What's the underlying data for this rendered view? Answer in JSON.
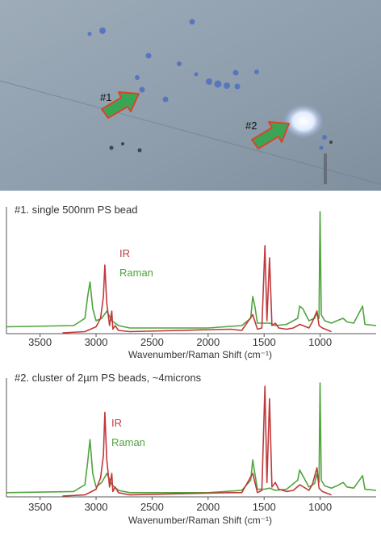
{
  "micrograph": {
    "labels": [
      "#1",
      "#2"
    ],
    "colors": {
      "background": "#8a9aa9",
      "particle": "#5b7dc9",
      "arrow": "#3aa655",
      "arrow_outline": "#d9452b"
    }
  },
  "chart_data": [
    {
      "type": "line",
      "title": "#1. single 500nm PS bead",
      "xlabel": "Wavenumber/Raman Shift (cm⁻¹)",
      "xlim": [
        3800,
        500
      ],
      "x_reversed": true,
      "x_ticks": [
        3500,
        3000,
        2500,
        2000,
        1500,
        1000
      ],
      "y_ticks_shown": false,
      "legend_position": "top-center",
      "series": [
        {
          "name": "IR",
          "color": "#c0393b",
          "x": [
            3300,
            3100,
            3000,
            2960,
            2935,
            2922,
            2905,
            2880,
            2860,
            2850,
            2830,
            2800,
            2700,
            1800,
            1700,
            1602,
            1560,
            1520,
            1493,
            1475,
            1452,
            1430,
            1400,
            1370,
            1300,
            1240,
            1180,
            1100,
            1070,
            1028,
            1010,
            980,
            900
          ],
          "y": [
            0.0,
            0.01,
            0.05,
            0.12,
            0.3,
            0.56,
            0.25,
            0.06,
            0.18,
            0.03,
            0.06,
            0.02,
            0.01,
            0.03,
            0.02,
            0.15,
            0.03,
            0.04,
            0.72,
            0.1,
            0.62,
            0.06,
            0.08,
            0.04,
            0.03,
            0.04,
            0.07,
            0.04,
            0.09,
            0.18,
            0.06,
            0.04,
            0.01
          ]
        },
        {
          "name": "Raman",
          "color": "#4fa43c",
          "x": [
            3800,
            3200,
            3100,
            3075,
            3054,
            3030,
            3000,
            2950,
            2904,
            2860,
            2800,
            2700,
            2000,
            1700,
            1620,
            1602,
            1583,
            1560,
            1500,
            1450,
            1400,
            1300,
            1200,
            1183,
            1155,
            1100,
            1050,
            1031,
            1010,
            1001,
            990,
            960,
            900,
            850,
            795,
            760,
            700,
            621,
            600,
            500
          ],
          "y": [
            0.05,
            0.06,
            0.12,
            0.3,
            0.42,
            0.2,
            0.1,
            0.12,
            0.18,
            0.1,
            0.06,
            0.04,
            0.04,
            0.06,
            0.12,
            0.3,
            0.22,
            0.08,
            0.08,
            0.08,
            0.06,
            0.07,
            0.12,
            0.22,
            0.2,
            0.1,
            0.12,
            0.16,
            0.12,
            1.0,
            0.15,
            0.1,
            0.08,
            0.1,
            0.12,
            0.09,
            0.08,
            0.22,
            0.07,
            0.06
          ]
        }
      ]
    },
    {
      "type": "line",
      "title": "#2. cluster of 2µm PS beads, ~4microns",
      "xlabel": "Wavenumber/Raman Shift (cm⁻¹)",
      "xlim": [
        3800,
        500
      ],
      "x_reversed": true,
      "x_ticks": [
        3500,
        3000,
        2500,
        2000,
        1500,
        1000
      ],
      "y_ticks_shown": false,
      "legend_position": "top-center",
      "series": [
        {
          "name": "IR",
          "color": "#c0393b",
          "x": [
            3300,
            3100,
            3000,
            2960,
            2935,
            2922,
            2905,
            2880,
            2860,
            2850,
            2830,
            2800,
            2700,
            1800,
            1700,
            1602,
            1560,
            1520,
            1493,
            1475,
            1452,
            1430,
            1400,
            1370,
            1300,
            1240,
            1180,
            1100,
            1070,
            1028,
            1010,
            980,
            900
          ],
          "y": [
            0.0,
            0.01,
            0.06,
            0.16,
            0.36,
            0.74,
            0.33,
            0.08,
            0.2,
            0.04,
            0.08,
            0.03,
            0.01,
            0.03,
            0.03,
            0.2,
            0.03,
            0.05,
            0.97,
            0.12,
            0.86,
            0.08,
            0.12,
            0.06,
            0.04,
            0.05,
            0.1,
            0.05,
            0.1,
            0.25,
            0.07,
            0.04,
            0.01
          ]
        },
        {
          "name": "Raman",
          "color": "#4fa43c",
          "x": [
            3800,
            3200,
            3100,
            3075,
            3054,
            3030,
            3000,
            2950,
            2904,
            2860,
            2800,
            2700,
            2000,
            1700,
            1620,
            1602,
            1583,
            1560,
            1500,
            1450,
            1400,
            1300,
            1200,
            1183,
            1155,
            1100,
            1050,
            1031,
            1010,
            1001,
            990,
            960,
            900,
            850,
            795,
            760,
            700,
            621,
            600,
            500
          ],
          "y": [
            0.03,
            0.04,
            0.1,
            0.3,
            0.5,
            0.2,
            0.08,
            0.12,
            0.2,
            0.1,
            0.05,
            0.03,
            0.03,
            0.05,
            0.14,
            0.32,
            0.2,
            0.06,
            0.06,
            0.07,
            0.05,
            0.06,
            0.14,
            0.23,
            0.18,
            0.08,
            0.11,
            0.19,
            0.12,
            1.0,
            0.14,
            0.09,
            0.07,
            0.09,
            0.12,
            0.08,
            0.07,
            0.18,
            0.06,
            0.05
          ]
        }
      ]
    }
  ]
}
